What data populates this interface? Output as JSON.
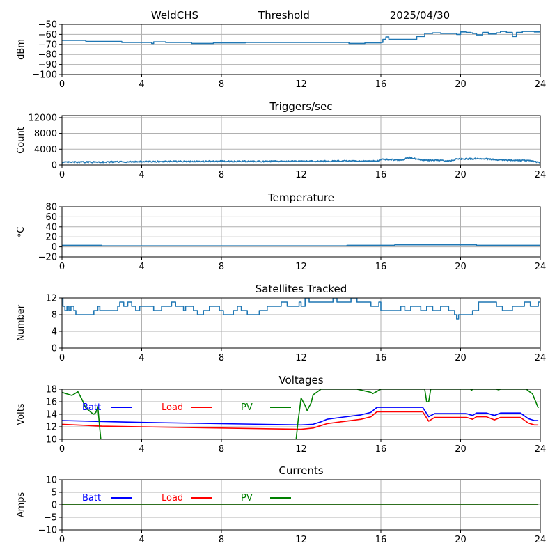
{
  "header": {
    "station": "WeldCHS",
    "mode": "Threshold",
    "date": "2025/04/30"
  },
  "chart_data": [
    {
      "type": "line",
      "key": "threshold",
      "title": "",
      "ylabel": "dBm",
      "xlim": [
        0,
        24
      ],
      "xticks": [
        0,
        4,
        8,
        12,
        16,
        20,
        24
      ],
      "ylim": [
        -100,
        -50
      ],
      "yticks": [
        -100,
        -90,
        -80,
        -70,
        -60,
        -50
      ],
      "grid": true,
      "series": [
        {
          "color": "#1f77b4",
          "step": true,
          "points": [
            [
              0,
              -66
            ],
            [
              1.2,
              -67
            ],
            [
              3,
              -68
            ],
            [
              4.5,
              -69
            ],
            [
              4.6,
              -67.5
            ],
            [
              5.2,
              -68
            ],
            [
              6.5,
              -69
            ],
            [
              7.6,
              -68.5
            ],
            [
              9.2,
              -68
            ],
            [
              10.5,
              -68
            ],
            [
              14.4,
              -69
            ],
            [
              15.2,
              -68.5
            ],
            [
              16,
              -68
            ],
            [
              16.1,
              -65
            ],
            [
              16.25,
              -62.5
            ],
            [
              16.4,
              -65
            ],
            [
              17.5,
              -65
            ],
            [
              17.8,
              -62
            ],
            [
              18.2,
              -59
            ],
            [
              18.6,
              -58.5
            ],
            [
              19,
              -59
            ],
            [
              19.5,
              -59
            ],
            [
              19.8,
              -60
            ],
            [
              20,
              -57.5
            ],
            [
              20.3,
              -58
            ],
            [
              20.5,
              -58.5
            ],
            [
              20.6,
              -59
            ],
            [
              20.8,
              -60.5
            ],
            [
              21.1,
              -58
            ],
            [
              21.4,
              -59.5
            ],
            [
              21.8,
              -58.5
            ],
            [
              21.9,
              -58.5
            ],
            [
              22,
              -57
            ],
            [
              22.3,
              -58
            ],
            [
              22.6,
              -62
            ],
            [
              22.8,
              -58
            ],
            [
              23.1,
              -57
            ],
            [
              23.7,
              -57.5
            ],
            [
              24,
              -61.5
            ]
          ]
        }
      ]
    },
    {
      "type": "line",
      "key": "triggers",
      "title": "Triggers/sec",
      "ylabel": "Count",
      "xlim": [
        0,
        24
      ],
      "xticks": [
        0,
        4,
        8,
        12,
        16,
        20,
        24
      ],
      "ylim": [
        0,
        12500
      ],
      "yticks": [
        0,
        4000,
        8000,
        12000
      ],
      "grid": true,
      "series": [
        {
          "color": "#1f77b4",
          "step": false,
          "noise": 350,
          "points": [
            [
              0,
              700
            ],
            [
              2,
              750
            ],
            [
              4,
              850
            ],
            [
              6,
              900
            ],
            [
              8,
              950
            ],
            [
              10,
              900
            ],
            [
              12,
              950
            ],
            [
              14,
              1000
            ],
            [
              15.9,
              1000
            ],
            [
              16,
              1500
            ],
            [
              17,
              1200
            ],
            [
              17.4,
              1900
            ],
            [
              18,
              1300
            ],
            [
              19.5,
              1000
            ],
            [
              19.8,
              1500
            ],
            [
              21,
              1600
            ],
            [
              22,
              1300
            ],
            [
              23.5,
              1100
            ],
            [
              24,
              500
            ]
          ]
        }
      ]
    },
    {
      "type": "line",
      "key": "temperature",
      "title": "Temperature",
      "ylabel": "ᵒC",
      "xlim": [
        0,
        24
      ],
      "xticks": [
        0,
        4,
        8,
        12,
        16,
        20,
        24
      ],
      "ylim": [
        -20,
        80
      ],
      "yticks": [
        -20,
        0,
        20,
        40,
        60,
        80
      ],
      "grid": true,
      "series": [
        {
          "color": "#1f77b4",
          "step": true,
          "points": [
            [
              0,
              3
            ],
            [
              2,
              2
            ],
            [
              14.3,
              2
            ],
            [
              14.3,
              3
            ],
            [
              16.7,
              3
            ],
            [
              16.7,
              4
            ],
            [
              20.8,
              4
            ],
            [
              20.8,
              3
            ],
            [
              24,
              3
            ]
          ]
        }
      ]
    },
    {
      "type": "line",
      "key": "satellites",
      "title": "Satellites Tracked",
      "ylabel": "Number",
      "xlim": [
        0,
        24
      ],
      "xticks": [
        0,
        4,
        8,
        12,
        16,
        20,
        24
      ],
      "ylim": [
        0,
        12
      ],
      "yticks": [
        0,
        4,
        8,
        12
      ],
      "grid": true,
      "series": [
        {
          "color": "#1f77b4",
          "step": true,
          "points": [
            [
              0,
              12
            ],
            [
              0.05,
              10
            ],
            [
              0.15,
              9
            ],
            [
              0.25,
              10
            ],
            [
              0.35,
              9
            ],
            [
              0.45,
              10
            ],
            [
              0.6,
              9
            ],
            [
              0.7,
              8
            ],
            [
              1.6,
              9
            ],
            [
              1.8,
              10
            ],
            [
              1.9,
              9
            ],
            [
              2.8,
              10
            ],
            [
              2.9,
              11
            ],
            [
              3.1,
              10
            ],
            [
              3.3,
              11
            ],
            [
              3.5,
              10
            ],
            [
              3.7,
              9
            ],
            [
              3.9,
              10
            ],
            [
              4.6,
              9
            ],
            [
              5,
              10
            ],
            [
              5.5,
              11
            ],
            [
              5.7,
              10
            ],
            [
              6.1,
              9
            ],
            [
              6.2,
              10
            ],
            [
              6.6,
              9
            ],
            [
              6.8,
              8
            ],
            [
              7.1,
              9
            ],
            [
              7.4,
              10
            ],
            [
              7.9,
              9
            ],
            [
              8.1,
              8
            ],
            [
              8.6,
              9
            ],
            [
              8.8,
              10
            ],
            [
              9,
              9
            ],
            [
              9.3,
              8
            ],
            [
              9.9,
              9
            ],
            [
              10.3,
              10
            ],
            [
              11,
              11
            ],
            [
              11.3,
              10
            ],
            [
              11.5,
              10
            ],
            [
              11.9,
              11
            ],
            [
              12,
              10
            ],
            [
              12.2,
              12
            ],
            [
              12.4,
              11
            ],
            [
              13,
              11
            ],
            [
              13.6,
              12
            ],
            [
              13.8,
              11
            ],
            [
              14.3,
              11
            ],
            [
              14.5,
              12
            ],
            [
              14.8,
              11
            ],
            [
              15.3,
              11
            ],
            [
              15.5,
              10
            ],
            [
              15.9,
              11
            ],
            [
              16,
              9
            ],
            [
              17,
              10
            ],
            [
              17.2,
              9
            ],
            [
              17.5,
              10
            ],
            [
              18,
              9
            ],
            [
              18.3,
              10
            ],
            [
              18.6,
              9
            ],
            [
              19,
              10
            ],
            [
              19.4,
              9
            ],
            [
              19.7,
              8
            ],
            [
              19.8,
              7
            ],
            [
              19.9,
              8
            ],
            [
              20.6,
              9
            ],
            [
              20.9,
              11
            ],
            [
              21.8,
              10
            ],
            [
              22.1,
              9
            ],
            [
              22.6,
              10
            ],
            [
              23.2,
              11
            ],
            [
              23.5,
              10
            ],
            [
              23.9,
              11
            ],
            [
              24,
              10
            ]
          ]
        }
      ]
    },
    {
      "type": "line",
      "key": "voltages",
      "title": "Voltages",
      "ylabel": "Volts",
      "xlim": [
        0,
        24
      ],
      "xticks": [
        0,
        4,
        8,
        12,
        16,
        20,
        24
      ],
      "ylim": [
        10,
        18
      ],
      "yticks": [
        10,
        12,
        14,
        16,
        18
      ],
      "grid": true,
      "legend": [
        {
          "label": "Batt",
          "color": "#0000ff"
        },
        {
          "label": "Load",
          "color": "#ff0000"
        },
        {
          "label": "PV",
          "color": "#008000"
        }
      ],
      "series": [
        {
          "name": "Batt",
          "color": "#0000ff",
          "step": false,
          "points": [
            [
              0,
              13
            ],
            [
              4,
              12.7
            ],
            [
              8,
              12.5
            ],
            [
              12,
              12.3
            ],
            [
              12.6,
              12.4
            ],
            [
              13,
              12.8
            ],
            [
              13.3,
              13.2
            ],
            [
              14,
              13.5
            ],
            [
              15,
              13.9
            ],
            [
              15.5,
              14.3
            ],
            [
              15.8,
              15.1
            ],
            [
              18.1,
              15.1
            ],
            [
              18.4,
              13.6
            ],
            [
              18.7,
              14.1
            ],
            [
              20.3,
              14.1
            ],
            [
              20.6,
              13.8
            ],
            [
              20.8,
              14.2
            ],
            [
              21.3,
              14.2
            ],
            [
              21.7,
              13.8
            ],
            [
              22,
              14.2
            ],
            [
              23,
              14.2
            ],
            [
              23.4,
              13.3
            ],
            [
              23.7,
              13
            ],
            [
              23.9,
              13
            ]
          ]
        },
        {
          "name": "Load",
          "color": "#ff0000",
          "step": false,
          "points": [
            [
              0,
              12.4
            ],
            [
              2,
              12.1
            ],
            [
              4,
              12
            ],
            [
              8,
              11.8
            ],
            [
              12,
              11.6
            ],
            [
              12.6,
              11.8
            ],
            [
              13,
              12.2
            ],
            [
              13.3,
              12.5
            ],
            [
              14,
              12.8
            ],
            [
              15,
              13.2
            ],
            [
              15.5,
              13.6
            ],
            [
              15.8,
              14.4
            ],
            [
              18.1,
              14.4
            ],
            [
              18.4,
              12.9
            ],
            [
              18.7,
              13.5
            ],
            [
              20.3,
              13.5
            ],
            [
              20.6,
              13.2
            ],
            [
              20.8,
              13.6
            ],
            [
              21.3,
              13.6
            ],
            [
              21.7,
              13.1
            ],
            [
              22,
              13.5
            ],
            [
              23,
              13.5
            ],
            [
              23.4,
              12.6
            ],
            [
              23.7,
              12.3
            ],
            [
              23.9,
              12.3
            ]
          ]
        },
        {
          "name": "PV",
          "color": "#008000",
          "step": false,
          "points": [
            [
              0,
              17.5
            ],
            [
              0.5,
              17
            ],
            [
              0.8,
              17.6
            ],
            [
              1,
              16.4
            ],
            [
              1.2,
              15
            ],
            [
              1.5,
              14.2
            ],
            [
              1.6,
              14
            ],
            [
              1.7,
              14.3
            ],
            [
              1.8,
              15.2
            ],
            [
              1.9,
              11.6
            ],
            [
              1.95,
              10
            ],
            [
              11.75,
              10
            ],
            [
              11.85,
              13
            ],
            [
              12,
              16.6
            ],
            [
              12.2,
              15.4
            ],
            [
              12.3,
              14.6
            ],
            [
              12.5,
              15.8
            ],
            [
              12.6,
              17.1
            ],
            [
              13,
              18
            ],
            [
              14.8,
              18
            ],
            [
              15.5,
              17.5
            ],
            [
              15.6,
              17.3
            ],
            [
              16,
              18
            ],
            [
              18.2,
              18
            ],
            [
              18.3,
              16
            ],
            [
              18.4,
              16
            ],
            [
              18.5,
              18
            ],
            [
              20.5,
              18
            ],
            [
              20.55,
              17.8
            ],
            [
              20.6,
              18
            ],
            [
              21.8,
              18
            ],
            [
              21.9,
              17.9
            ],
            [
              22,
              18
            ],
            [
              23.3,
              18
            ],
            [
              23.5,
              17.5
            ],
            [
              23.6,
              17.3
            ],
            [
              23.9,
              15
            ]
          ]
        }
      ]
    },
    {
      "type": "line",
      "key": "currents",
      "title": "Currents",
      "ylabel": "Amps",
      "xlim": [
        0,
        24
      ],
      "xticks": [
        0,
        4,
        8,
        12,
        16,
        20,
        24
      ],
      "ylim": [
        -10,
        10
      ],
      "yticks": [
        -10,
        -5,
        0,
        5,
        10
      ],
      "grid": true,
      "legend": [
        {
          "label": "Batt",
          "color": "#0000ff"
        },
        {
          "label": "Load",
          "color": "#ff0000"
        },
        {
          "label": "PV",
          "color": "#008000"
        }
      ],
      "series": [
        {
          "name": "Batt",
          "color": "#0000ff",
          "step": false,
          "points": [
            [
              0,
              0
            ],
            [
              23.9,
              0
            ]
          ]
        },
        {
          "name": "Load",
          "color": "#ff0000",
          "step": false,
          "points": [
            [
              0,
              0
            ],
            [
              23.9,
              0
            ]
          ]
        },
        {
          "name": "PV",
          "color": "#008000",
          "step": false,
          "points": [
            [
              0,
              0
            ],
            [
              23.9,
              0
            ]
          ]
        }
      ]
    }
  ]
}
